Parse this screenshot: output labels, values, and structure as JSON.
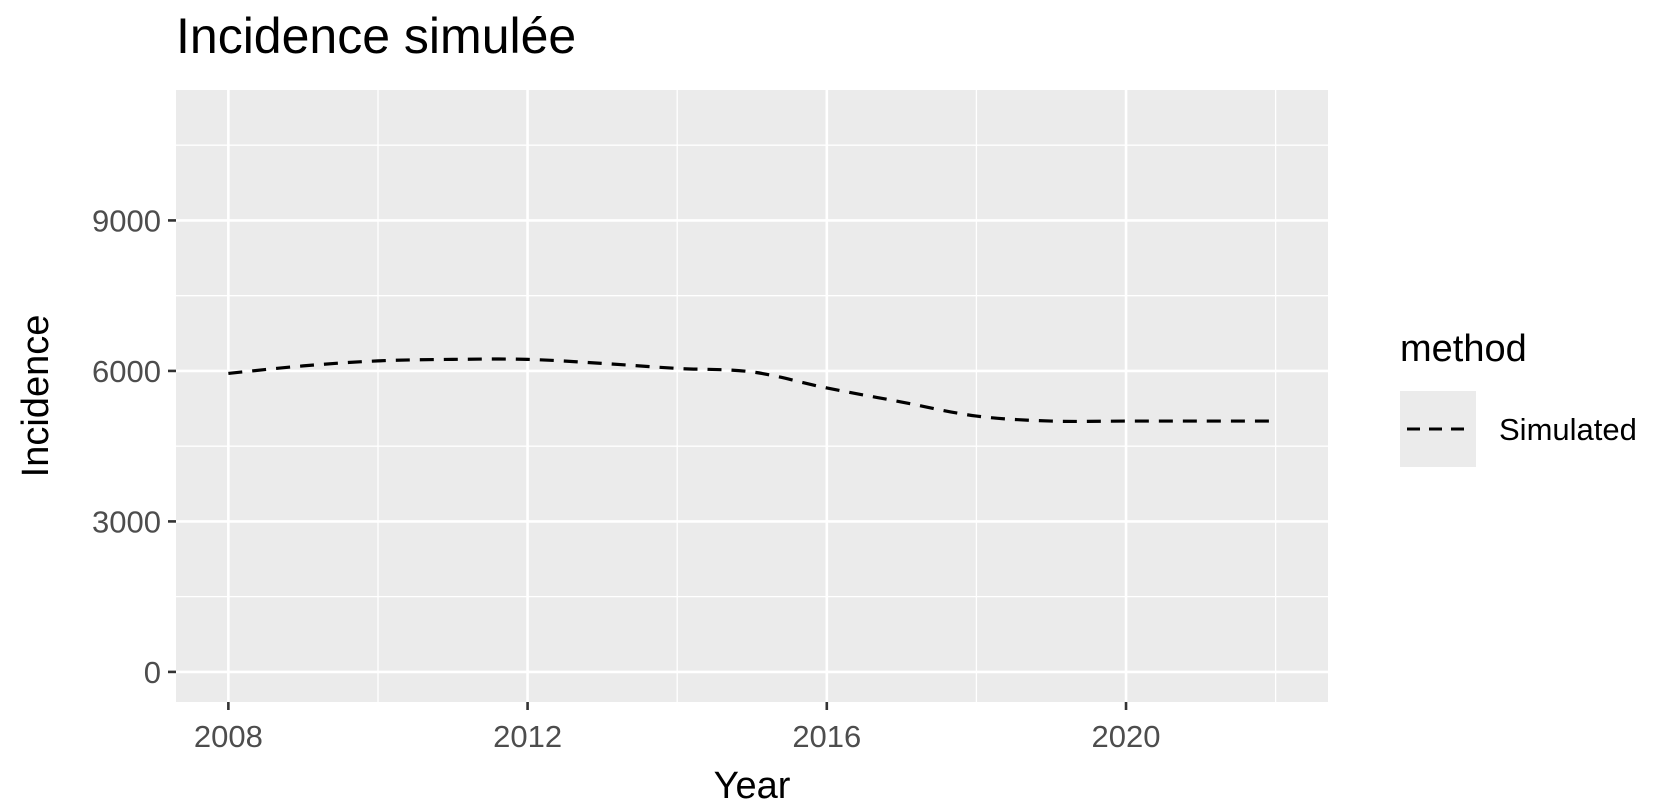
{
  "chart_data": {
    "type": "line",
    "title": "Incidence simulée",
    "xlabel": "Year",
    "ylabel": "Incidence",
    "x_ticks": [
      "2008",
      "2012",
      "2016",
      "2020"
    ],
    "y_ticks": [
      "0",
      "3000",
      "6000",
      "9000"
    ],
    "xlim": [
      2007.3,
      2022.7
    ],
    "ylim": [
      -600,
      11600
    ],
    "grid": true,
    "legend": {
      "title": "method",
      "placement": "right",
      "entries": [
        "Simulated"
      ]
    },
    "series": [
      {
        "name": "Simulated",
        "line_style": "dashed",
        "color": "#000000",
        "x": [
          2008,
          2009,
          2010,
          2011,
          2012,
          2013,
          2014,
          2015,
          2016,
          2017,
          2018,
          2019,
          2020,
          2021,
          2022
        ],
        "y": [
          5950,
          6100,
          6200,
          6230,
          6230,
          6150,
          6050,
          5980,
          5660,
          5380,
          5100,
          5000,
          5000,
          5000,
          5000
        ]
      }
    ],
    "colors": {
      "panel_background": "#ebebeb",
      "gridline": "#ffffff",
      "tick_text": "#4d4d4d",
      "legend_key_background": "#ebebeb"
    }
  }
}
